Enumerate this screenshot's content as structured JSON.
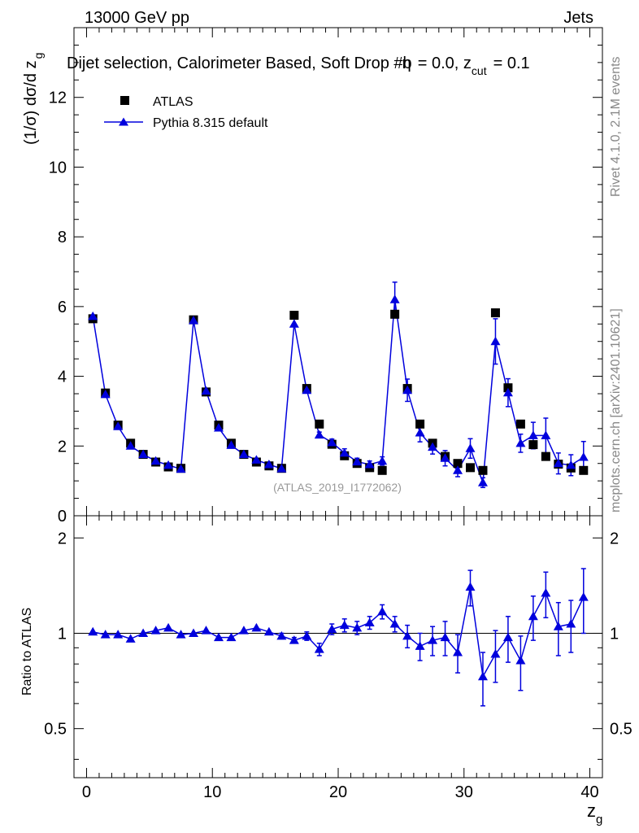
{
  "header": {
    "energy_label": "13000 GeV pp",
    "process_label": "Jets",
    "plot_title": "Dijet selection, Calorimeter Based, Soft Drop #b",
    "plot_title_params": "= 0.0, z",
    "plot_title_sub": "cut",
    "plot_title_tail": "= 0.1",
    "eta_symbol": "η"
  },
  "side_labels": {
    "rivet": "Rivet 4.1.0,  2.1M events",
    "mcplots": "mcplots.cern.ch [arXiv:2401.10621]"
  },
  "watermark": "(ATLAS_2019_I1772062)",
  "legend": {
    "data_label": "ATLAS",
    "mc_label": "Pythia 8.315 default"
  },
  "colors": {
    "data": "#000000",
    "mc": "#0000dd",
    "watermark": "#999999",
    "side_text": "#888888"
  },
  "chart_data": [
    {
      "type": "scatter",
      "panel": "main",
      "ylabel": "(1/σ) dσ/d z",
      "ylabel_sub": "g",
      "xlim": [
        -1,
        41
      ],
      "ylim": [
        0,
        14
      ],
      "y_ticks": [
        0,
        2,
        4,
        6,
        8,
        10,
        12
      ],
      "y_tick_labels": [
        "0",
        "2",
        "4",
        "6",
        "8",
        "10",
        "12"
      ],
      "x": [
        0.5,
        1.5,
        2.5,
        3.5,
        4.5,
        5.5,
        6.5,
        7.5,
        8.5,
        9.5,
        10.5,
        11.5,
        12.5,
        13.5,
        14.5,
        15.5,
        16.5,
        17.5,
        18.5,
        19.5,
        20.5,
        21.5,
        22.5,
        23.5,
        24.5,
        25.5,
        26.5,
        27.5,
        28.5,
        29.5,
        30.5,
        31.5,
        32.5,
        33.5,
        34.5,
        35.5,
        36.5,
        37.5,
        38.5,
        39.5
      ],
      "series": [
        {
          "name": "ATLAS",
          "marker": "square",
          "values": [
            5.65,
            3.52,
            2.6,
            2.08,
            1.76,
            1.54,
            1.4,
            1.36,
            5.62,
            3.55,
            2.6,
            2.08,
            1.76,
            1.54,
            1.43,
            1.36,
            5.75,
            3.65,
            2.63,
            2.05,
            1.72,
            1.5,
            1.38,
            1.3,
            5.78,
            3.65,
            2.63,
            2.08,
            1.7,
            1.5,
            1.38,
            1.3,
            5.82,
            3.67,
            2.63,
            2.04,
            1.7,
            1.48,
            1.37,
            1.3
          ]
        },
        {
          "name": "Pythia 8.315 default",
          "marker": "triangle",
          "values": [
            5.72,
            3.48,
            2.56,
            2.0,
            1.76,
            1.57,
            1.45,
            1.34,
            5.6,
            3.58,
            2.52,
            2.02,
            1.76,
            1.6,
            1.47,
            1.35,
            5.5,
            3.6,
            2.32,
            2.1,
            1.8,
            1.55,
            1.47,
            1.57,
            6.2,
            3.6,
            2.38,
            1.97,
            1.65,
            1.3,
            1.93,
            0.95,
            5.0,
            3.53,
            2.08,
            2.3,
            2.3,
            1.5,
            1.45,
            1.68
          ],
          "errors": [
            0.05,
            0.05,
            0.05,
            0.05,
            0.05,
            0.05,
            0.05,
            0.05,
            0.05,
            0.05,
            0.05,
            0.05,
            0.05,
            0.05,
            0.05,
            0.05,
            0.05,
            0.08,
            0.08,
            0.1,
            0.12,
            0.1,
            0.1,
            0.12,
            0.5,
            0.32,
            0.26,
            0.2,
            0.22,
            0.18,
            0.28,
            0.14,
            0.65,
            0.4,
            0.26,
            0.38,
            0.5,
            0.3,
            0.3,
            0.45
          ]
        }
      ]
    },
    {
      "type": "scatter",
      "panel": "ratio",
      "ylabel": "Ratio to ATLAS",
      "xlabel": "z",
      "xlabel_sub": "g",
      "xlim": [
        -1,
        41
      ],
      "ylim": [
        0.35,
        2.35
      ],
      "reference_line": 1,
      "y_ticks": [
        0.5,
        1,
        2
      ],
      "y_tick_labels": [
        "0.5",
        "1",
        "2"
      ],
      "x_ticks": [
        0,
        10,
        20,
        30,
        40
      ],
      "x_tick_labels": [
        "0",
        "10",
        "20",
        "30",
        "40"
      ],
      "x": [
        0.5,
        1.5,
        2.5,
        3.5,
        4.5,
        5.5,
        6.5,
        7.5,
        8.5,
        9.5,
        10.5,
        11.5,
        12.5,
        13.5,
        14.5,
        15.5,
        16.5,
        17.5,
        18.5,
        19.5,
        20.5,
        21.5,
        22.5,
        23.5,
        24.5,
        25.5,
        26.5,
        27.5,
        28.5,
        29.5,
        30.5,
        31.5,
        32.5,
        33.5,
        34.5,
        35.5,
        36.5,
        37.5,
        38.5,
        39.5
      ],
      "series": [
        {
          "name": "Pythia 8.315 default / ATLAS",
          "values": [
            1.01,
            0.99,
            0.99,
            0.96,
            1.0,
            1.02,
            1.04,
            0.99,
            1.0,
            1.02,
            0.97,
            0.97,
            1.02,
            1.04,
            1.01,
            0.98,
            0.95,
            0.98,
            0.89,
            1.03,
            1.06,
            1.04,
            1.08,
            1.17,
            1.07,
            0.98,
            0.91,
            0.95,
            0.97,
            0.87,
            1.4,
            0.73,
            0.86,
            0.97,
            0.82,
            1.13,
            1.34,
            1.05,
            1.07,
            1.3
          ],
          "errors": [
            0.01,
            0.01,
            0.01,
            0.01,
            0.01,
            0.01,
            0.01,
            0.01,
            0.01,
            0.01,
            0.01,
            0.01,
            0.01,
            0.01,
            0.01,
            0.02,
            0.02,
            0.03,
            0.04,
            0.04,
            0.05,
            0.05,
            0.05,
            0.06,
            0.06,
            0.08,
            0.09,
            0.1,
            0.12,
            0.12,
            0.18,
            0.14,
            0.16,
            0.16,
            0.16,
            0.18,
            0.22,
            0.2,
            0.2,
            0.3
          ]
        }
      ]
    }
  ]
}
